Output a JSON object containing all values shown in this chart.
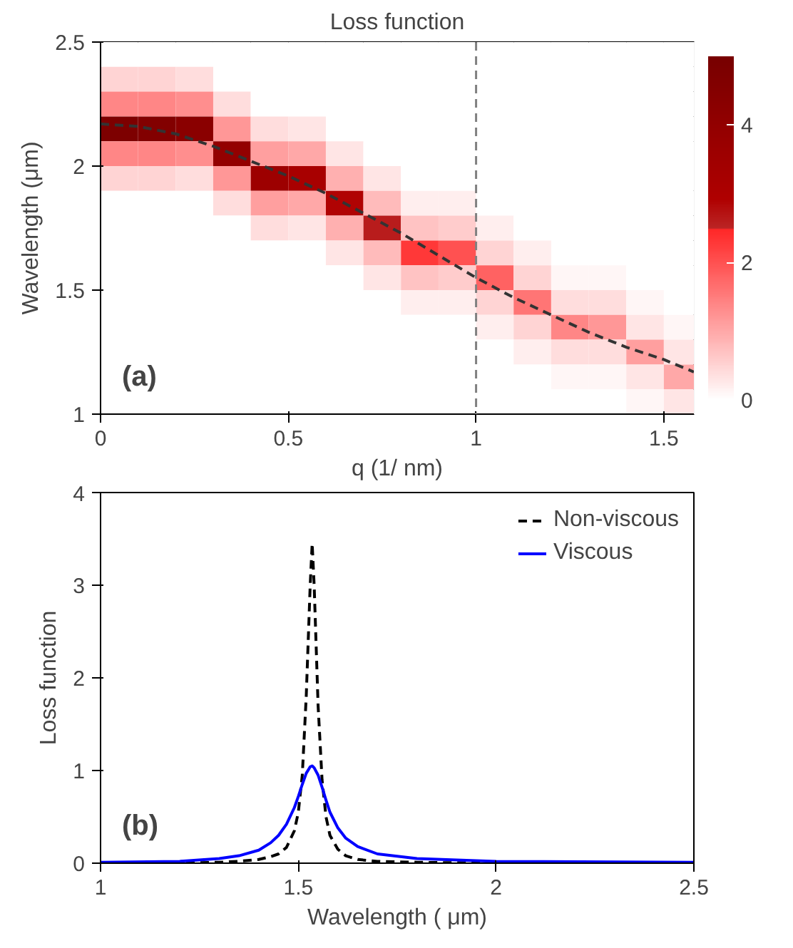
{
  "chart_data": [
    {
      "type": "heatmap",
      "title": "Loss function",
      "xlabel": "q (1/ nm)",
      "ylabel": "Wavelength (μm)",
      "x": [
        0.05,
        0.15,
        0.25,
        0.35,
        0.45,
        0.55,
        0.65,
        0.75,
        0.85,
        0.95,
        1.05,
        1.15,
        1.25,
        1.35,
        1.45,
        1.55
      ],
      "y": [
        2.45,
        2.35,
        2.25,
        2.15,
        2.05,
        1.95,
        1.85,
        1.75,
        1.65,
        1.55,
        1.45,
        1.35,
        1.25,
        1.15,
        1.05
      ],
      "cells": [
        [
          0,
          0,
          0,
          0,
          0,
          0,
          0,
          0,
          0,
          0,
          0,
          0,
          0,
          0,
          0,
          0
        ],
        [
          0.5,
          0.5,
          0.4,
          0,
          0,
          0,
          0,
          0,
          0,
          0,
          0,
          0,
          0,
          0,
          0,
          0
        ],
        [
          1.4,
          1.4,
          1.3,
          0.4,
          0,
          0,
          0,
          0,
          0,
          0,
          0,
          0,
          0,
          0,
          0,
          0
        ],
        [
          4.8,
          4.6,
          4.3,
          1.2,
          0.4,
          0.3,
          0,
          0,
          0,
          0,
          0,
          0,
          0,
          0,
          0,
          0
        ],
        [
          1.4,
          1.4,
          1.3,
          4.0,
          1.1,
          1.0,
          0.3,
          0,
          0,
          0,
          0,
          0,
          0,
          0,
          0,
          0
        ],
        [
          0.5,
          0.5,
          0.4,
          1.2,
          3.6,
          3.2,
          0.9,
          0.3,
          0,
          0,
          0,
          0,
          0,
          0,
          0,
          0
        ],
        [
          0,
          0,
          0,
          0.4,
          1.1,
          1.0,
          2.9,
          0.8,
          0.2,
          0.2,
          0,
          0,
          0,
          0,
          0,
          0
        ],
        [
          0,
          0,
          0,
          0,
          0.4,
          0.3,
          0.9,
          2.6,
          0.7,
          0.6,
          0.2,
          0,
          0,
          0,
          0,
          0
        ],
        [
          0,
          0,
          0,
          0,
          0,
          0,
          0.3,
          0.8,
          2.3,
          2.0,
          0.5,
          0.2,
          0,
          0,
          0,
          0
        ],
        [
          0,
          0,
          0,
          0,
          0,
          0,
          0,
          0.3,
          0.7,
          0.6,
          1.8,
          0.5,
          0.1,
          0.1,
          0,
          0
        ],
        [
          0,
          0,
          0,
          0,
          0,
          0,
          0,
          0,
          0.2,
          0.2,
          0.5,
          1.6,
          0.4,
          0.4,
          0.1,
          0
        ],
        [
          0,
          0,
          0,
          0,
          0,
          0,
          0,
          0,
          0,
          0,
          0.2,
          0.5,
          1.4,
          1.2,
          0.3,
          0.1
        ],
        [
          0,
          0,
          0,
          0,
          0,
          0,
          0,
          0,
          0,
          0,
          0,
          0.2,
          0.4,
          0.4,
          1.1,
          0.3
        ],
        [
          0,
          0,
          0,
          0,
          0,
          0,
          0,
          0,
          0,
          0,
          0,
          0,
          0.1,
          0.1,
          0.3,
          1.0
        ],
        [
          0,
          0,
          0,
          0,
          0,
          0,
          0,
          0,
          0,
          0,
          0,
          0,
          0,
          0,
          0.1,
          0.3
        ]
      ],
      "clim": [
        0,
        5
      ],
      "cticks": [
        0,
        2,
        4
      ],
      "series": [
        {
          "type": "line",
          "color": "#333333",
          "line_style": "dashed",
          "x": [
            0,
            0.1,
            0.2,
            0.3,
            0.4,
            0.5,
            0.6,
            0.7,
            0.8,
            0.9,
            1.0,
            1.1,
            1.2,
            1.3,
            1.4,
            1.5,
            1.58
          ],
          "values": [
            2.17,
            2.16,
            2.13,
            2.08,
            2.02,
            1.96,
            1.89,
            1.81,
            1.73,
            1.64,
            1.55,
            1.47,
            1.4,
            1.33,
            1.27,
            1.22,
            1.17
          ]
        }
      ],
      "ref_lines": [
        {
          "axis": "x",
          "value": 1,
          "color": "#808080",
          "line_style": "dashed"
        }
      ],
      "xlim": [
        0,
        1.58
      ],
      "xticks": [
        0,
        0.5,
        1,
        1.5
      ],
      "ylim": [
        1,
        2.5
      ],
      "yticks": [
        1,
        1.5,
        2,
        2.5
      ],
      "annotations": [
        "(a)"
      ]
    },
    {
      "type": "line",
      "xlabel": "Wavelength ( μm)",
      "ylabel": "Loss function",
      "x": [
        1.0,
        1.2,
        1.3,
        1.35,
        1.4,
        1.43,
        1.45,
        1.47,
        1.49,
        1.5,
        1.51,
        1.52,
        1.53,
        1.535,
        1.54,
        1.55,
        1.56,
        1.57,
        1.58,
        1.6,
        1.62,
        1.65,
        1.7,
        1.8,
        2.0,
        2.5
      ],
      "series": [
        {
          "name": "Non-viscous",
          "color": "#000000",
          "line_style": "dashed",
          "values": [
            0,
            0,
            0.01,
            0.02,
            0.04,
            0.07,
            0.1,
            0.17,
            0.35,
            0.55,
            0.95,
            1.8,
            3.0,
            3.45,
            3.0,
            1.7,
            0.9,
            0.5,
            0.3,
            0.15,
            0.08,
            0.04,
            0.02,
            0.01,
            0,
            0
          ]
        },
        {
          "name": "Viscous",
          "color": "#0000ff",
          "line_style": "solid",
          "values": [
            0.01,
            0.02,
            0.05,
            0.08,
            0.14,
            0.22,
            0.3,
            0.42,
            0.6,
            0.72,
            0.85,
            0.97,
            1.04,
            1.05,
            1.03,
            0.95,
            0.82,
            0.68,
            0.55,
            0.38,
            0.27,
            0.18,
            0.1,
            0.05,
            0.02,
            0.01
          ]
        }
      ],
      "xlim": [
        1,
        2.5
      ],
      "xticks": [
        1,
        1.5,
        2,
        2.5
      ],
      "ylim": [
        0,
        4
      ],
      "yticks": [
        0,
        1,
        2,
        3,
        4
      ],
      "legend": "top right",
      "annotations": [
        "(b)"
      ]
    }
  ]
}
